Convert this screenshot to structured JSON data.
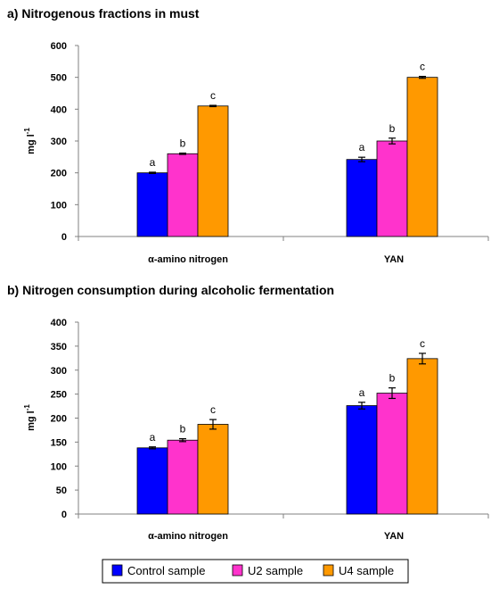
{
  "legend": {
    "items": [
      {
        "label": "Control sample",
        "color": "#0000ff"
      },
      {
        "label": "U2 sample",
        "color": "#ff33cc"
      },
      {
        "label": "U4 sample",
        "color": "#ff9900"
      }
    ]
  },
  "chart_data": [
    {
      "type": "bar",
      "title": "a) Nitrogenous fractions in must",
      "ylabel_main": "mg l",
      "ylabel_sup": "-1",
      "ylim": [
        0,
        600
      ],
      "yticks": [
        0,
        100,
        200,
        300,
        400,
        500,
        600
      ],
      "grid": false,
      "categories": [
        "α-amino nitrogen",
        "YAN"
      ],
      "series": [
        {
          "name": "Control sample",
          "color": "#0000ff",
          "values": [
            200,
            242
          ],
          "errors": [
            2,
            7
          ],
          "labels": [
            "a",
            "a"
          ]
        },
        {
          "name": "U2 sample",
          "color": "#ff33cc",
          "values": [
            260,
            300
          ],
          "errors": [
            2,
            9
          ],
          "labels": [
            "b",
            "b"
          ]
        },
        {
          "name": "U4 sample",
          "color": "#ff9900",
          "values": [
            410,
            500
          ],
          "errors": [
            2,
            3
          ],
          "labels": [
            "c",
            "c"
          ]
        }
      ]
    },
    {
      "type": "bar",
      "title": "b) Nitrogen consumption during alcoholic fermentation",
      "ylabel_main": "mg l",
      "ylabel_sup": "-1",
      "ylim": [
        0,
        400
      ],
      "yticks": [
        0,
        50,
        100,
        150,
        200,
        250,
        300,
        350,
        400
      ],
      "grid": false,
      "categories": [
        "α-amino nitrogen",
        "YAN"
      ],
      "series": [
        {
          "name": "Control sample",
          "color": "#0000ff",
          "values": [
            138,
            226
          ],
          "errors": [
            2,
            7
          ],
          "labels": [
            "a",
            "a"
          ]
        },
        {
          "name": "U2 sample",
          "color": "#ff33cc",
          "values": [
            154,
            252
          ],
          "errors": [
            3,
            11
          ],
          "labels": [
            "b",
            "b"
          ]
        },
        {
          "name": "U4 sample",
          "color": "#ff9900",
          "values": [
            187,
            324
          ],
          "errors": [
            10,
            11
          ],
          "labels": [
            "c",
            "c"
          ]
        }
      ]
    }
  ]
}
